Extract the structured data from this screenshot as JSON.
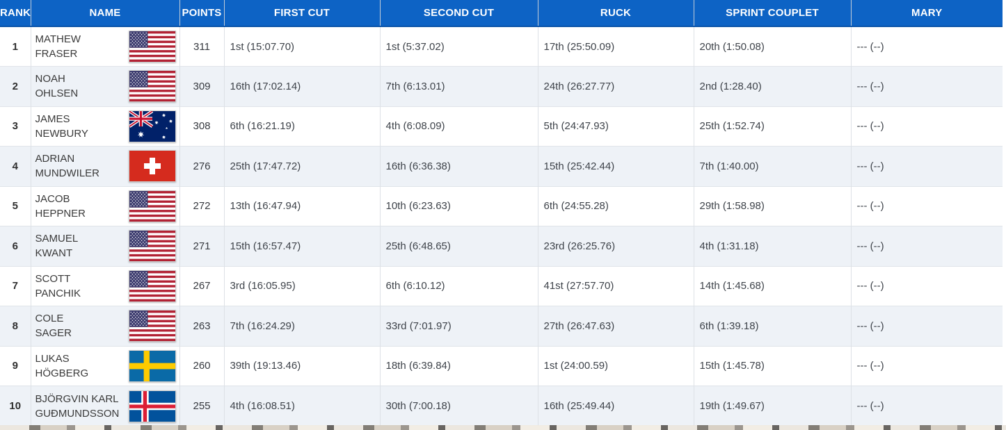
{
  "table_title": "leaderboard",
  "colors": {
    "header_bg": "#0d63c5",
    "header_border_bottom": "#0a53a8",
    "header_separator": "#c3cdd8",
    "row_alt_bg": "#eef2f7",
    "row_plain_bg": "#ffffff",
    "cell_border": "#dde1e6",
    "header_text": "#ffffff",
    "body_text": "#3e434a",
    "rank_text": "#2f2f2f"
  },
  "flag_colors": {
    "usa_red": "#B22234",
    "usa_blue": "#3C3B6E",
    "aus_navy": "#012169",
    "uj_red": "#C8102E",
    "swiss_red": "#D52B1E",
    "sweden_blue": "#0A6AA7",
    "sweden_yellow": "#FECB00",
    "iceland_blue": "#02529C",
    "iceland_red": "#DC1E35",
    "white": "#FFFFFF"
  },
  "columns": [
    {
      "key": "rank",
      "label": "RANK"
    },
    {
      "key": "name",
      "label": "NAME"
    },
    {
      "key": "points",
      "label": "POINTS"
    },
    {
      "key": "first_cut",
      "label": "FIRST CUT"
    },
    {
      "key": "second_cut",
      "label": "SECOND CUT"
    },
    {
      "key": "ruck",
      "label": "RUCK"
    },
    {
      "key": "sprint_couplet",
      "label": "SPRINT COUPLET"
    },
    {
      "key": "mary",
      "label": "MARY"
    }
  ],
  "rows": [
    {
      "rank": "1",
      "name_line1": "MATHEW",
      "name_line2": "FRASER",
      "country": "usa",
      "points": "311",
      "first_cut": "1st (15:07.70)",
      "second_cut": "1st (5:37.02)",
      "ruck": "17th (25:50.09)",
      "sprint_couplet": "20th (1:50.08)",
      "mary": "--- (--)"
    },
    {
      "rank": "2",
      "name_line1": "NOAH",
      "name_line2": "OHLSEN",
      "country": "usa",
      "points": "309",
      "first_cut": "16th (17:02.14)",
      "second_cut": "7th (6:13.01)",
      "ruck": "24th (26:27.77)",
      "sprint_couplet": "2nd (1:28.40)",
      "mary": "--- (--)"
    },
    {
      "rank": "3",
      "name_line1": "JAMES",
      "name_line2": "NEWBURY",
      "country": "australia",
      "points": "308",
      "first_cut": "6th (16:21.19)",
      "second_cut": "4th (6:08.09)",
      "ruck": "5th (24:47.93)",
      "sprint_couplet": "25th (1:52.74)",
      "mary": "--- (--)"
    },
    {
      "rank": "4",
      "name_line1": "ADRIAN",
      "name_line2": "MUNDWILER",
      "country": "switzerland",
      "points": "276",
      "first_cut": "25th (17:47.72)",
      "second_cut": "16th (6:36.38)",
      "ruck": "15th (25:42.44)",
      "sprint_couplet": "7th (1:40.00)",
      "mary": "--- (--)"
    },
    {
      "rank": "5",
      "name_line1": "JACOB",
      "name_line2": "HEPPNER",
      "country": "usa",
      "points": "272",
      "first_cut": "13th (16:47.94)",
      "second_cut": "10th (6:23.63)",
      "ruck": "6th (24:55.28)",
      "sprint_couplet": "29th (1:58.98)",
      "mary": "--- (--)"
    },
    {
      "rank": "6",
      "name_line1": "SAMUEL",
      "name_line2": "KWANT",
      "country": "usa",
      "points": "271",
      "first_cut": "15th (16:57.47)",
      "second_cut": "25th (6:48.65)",
      "ruck": "23rd (26:25.76)",
      "sprint_couplet": "4th (1:31.18)",
      "mary": "--- (--)"
    },
    {
      "rank": "7",
      "name_line1": "SCOTT",
      "name_line2": "PANCHIK",
      "country": "usa",
      "points": "267",
      "first_cut": "3rd (16:05.95)",
      "second_cut": "6th (6:10.12)",
      "ruck": "41st (27:57.70)",
      "sprint_couplet": "14th (1:45.68)",
      "mary": "--- (--)"
    },
    {
      "rank": "8",
      "name_line1": "COLE",
      "name_line2": "SAGER",
      "country": "usa",
      "points": "263",
      "first_cut": "7th (16:24.29)",
      "second_cut": "33rd (7:01.97)",
      "ruck": "27th (26:47.63)",
      "sprint_couplet": "6th (1:39.18)",
      "mary": "--- (--)"
    },
    {
      "rank": "9",
      "name_line1": "LUKAS",
      "name_line2": "HÖGBERG",
      "country": "sweden",
      "points": "260",
      "first_cut": "39th (19:13.46)",
      "second_cut": "18th (6:39.84)",
      "ruck": "1st (24:00.59)",
      "sprint_couplet": "15th (1:45.78)",
      "mary": "--- (--)"
    },
    {
      "rank": "10",
      "name_line1": "BJÖRGVIN KARL",
      "name_line2": "GUÐMUNDSSON",
      "country": "iceland",
      "points": "255",
      "first_cut": "4th (16:08.51)",
      "second_cut": "30th (7:00.18)",
      "ruck": "16th (25:49.44)",
      "sprint_couplet": "19th (1:49.67)",
      "mary": "--- (--)"
    }
  ]
}
